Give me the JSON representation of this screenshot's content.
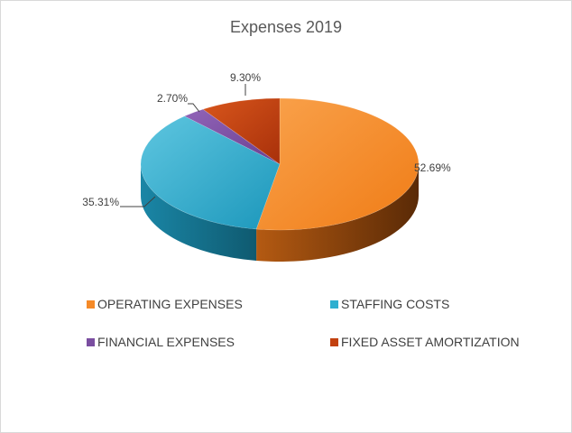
{
  "chart_data": {
    "type": "pie",
    "title": "Expenses 2019",
    "categories": [
      "OPERATING EXPENSES",
      "STAFFING COSTS",
      "FINANCIAL EXPENSES",
      "FIXED ASSET AMORTIZATION"
    ],
    "values": [
      52.69,
      35.31,
      2.7,
      9.3
    ],
    "value_labels": [
      "52.69%",
      "35.31%",
      "2.70%",
      "9.30%"
    ],
    "colors": [
      "#f58a28",
      "#2fafd0",
      "#7a4ea0",
      "#c2410f"
    ],
    "style": "3d",
    "legend_position": "bottom"
  }
}
